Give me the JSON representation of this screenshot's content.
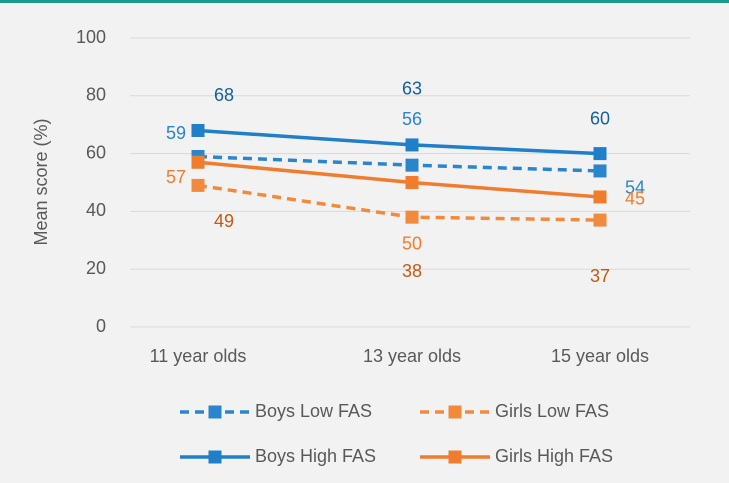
{
  "chart_data": {
    "type": "line",
    "y_label": "Mean score (%)",
    "categories": [
      "11 year olds",
      "13 year olds",
      "15 year olds"
    ],
    "series": [
      {
        "name": "Boys Low FAS",
        "color": "#2a86cc",
        "label_color": "#2a86cc",
        "dashed": true,
        "values": [
          59,
          56,
          54
        ]
      },
      {
        "name": "Girls Low FAS",
        "color": "#f28a3c",
        "label_color": "#c55a11",
        "dashed": true,
        "values": [
          49,
          38,
          37
        ]
      },
      {
        "name": "Boys High FAS",
        "color": "#1f7fc8",
        "label_color": "#16609a",
        "dashed": false,
        "values": [
          68,
          63,
          60
        ]
      },
      {
        "name": "Girls High FAS",
        "color": "#f07d2e",
        "label_color": "#f07d2e",
        "dashed": false,
        "values": [
          57,
          50,
          45
        ]
      }
    ],
    "ylim": [
      0,
      100
    ],
    "yticks": [
      0,
      20,
      40,
      60,
      80,
      100
    ],
    "grid": true,
    "legend": "bottom"
  }
}
